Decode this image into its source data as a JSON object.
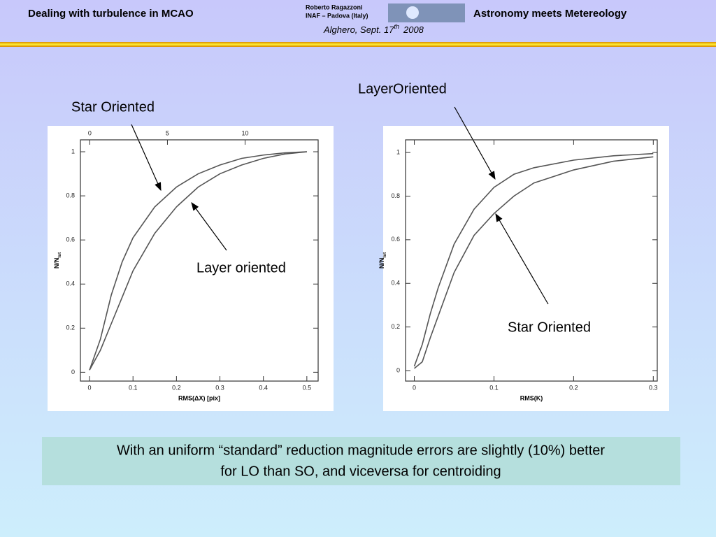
{
  "header": {
    "left_title": "Dealing with turbulence in MCAO",
    "author": "Roberto Ragazzoni",
    "affiliation": "INAF – Padova (Italy)",
    "date": "Alghero, Sept. 17",
    "date_sup": "th",
    "year": "2008",
    "right_title": "Astronomy meets Metereology"
  },
  "chart_data": [
    {
      "type": "line",
      "xlabel": "RMS(ΔX)  [pix]",
      "ylabel": "N/N",
      "ylabel_sub": "tot",
      "xlim": [
        -0.021,
        0.526
      ],
      "ylim": [
        -0.04,
        1.054
      ],
      "xticks": [
        0,
        0.1,
        0.2,
        0.3,
        0.4,
        0.5
      ],
      "yticks": [
        0,
        0.2,
        0.4,
        0.6,
        0.8,
        1
      ],
      "x2lim": [
        -0.6,
        14.7
      ],
      "x2ticks": [
        0,
        5,
        10
      ],
      "series": [
        {
          "color": "#555555",
          "x": [
            0,
            0.025,
            0.05,
            0.075,
            0.1,
            0.15,
            0.2,
            0.25,
            0.3,
            0.35,
            0.4,
            0.45,
            0.5
          ],
          "values": [
            0.01,
            0.15,
            0.35,
            0.5,
            0.61,
            0.75,
            0.84,
            0.9,
            0.94,
            0.97,
            0.985,
            0.995,
            1.0
          ]
        },
        {
          "color": "#555555",
          "x": [
            0,
            0.025,
            0.05,
            0.075,
            0.1,
            0.15,
            0.2,
            0.25,
            0.3,
            0.35,
            0.4,
            0.45,
            0.5
          ],
          "values": [
            0.01,
            0.1,
            0.22,
            0.34,
            0.46,
            0.63,
            0.75,
            0.84,
            0.9,
            0.94,
            0.97,
            0.99,
            1.0
          ]
        }
      ]
    },
    {
      "type": "line",
      "xlabel": "RMS(K)",
      "ylabel": "N/N",
      "ylabel_sub": "tot",
      "xlim": [
        -0.011,
        0.305
      ],
      "ylim": [
        -0.048,
        1.058
      ],
      "xticks": [
        0,
        0.1,
        0.2,
        0.3
      ],
      "yticks": [
        0,
        0.2,
        0.4,
        0.6,
        0.8,
        1
      ],
      "series": [
        {
          "color": "#555555",
          "x": [
            0,
            0.01,
            0.02,
            0.03,
            0.05,
            0.075,
            0.1,
            0.125,
            0.15,
            0.2,
            0.25,
            0.3
          ],
          "values": [
            0.02,
            0.12,
            0.26,
            0.38,
            0.58,
            0.74,
            0.84,
            0.9,
            0.93,
            0.965,
            0.985,
            0.995
          ]
        },
        {
          "color": "#555555",
          "x": [
            0,
            0.01,
            0.02,
            0.03,
            0.05,
            0.075,
            0.1,
            0.125,
            0.15,
            0.2,
            0.25,
            0.3
          ],
          "values": [
            0.01,
            0.04,
            0.15,
            0.25,
            0.45,
            0.62,
            0.72,
            0.8,
            0.86,
            0.92,
            0.96,
            0.98
          ]
        }
      ]
    }
  ],
  "annotations": [
    "Star Oriented",
    "Layer oriented",
    "LayerOriented",
    "Star Oriented"
  ],
  "caption": {
    "line1": "With an uniform “standard” reduction magnitude errors are slightly (10%) better",
    "line2": "for LO than SO, and viceversa for centroiding"
  }
}
